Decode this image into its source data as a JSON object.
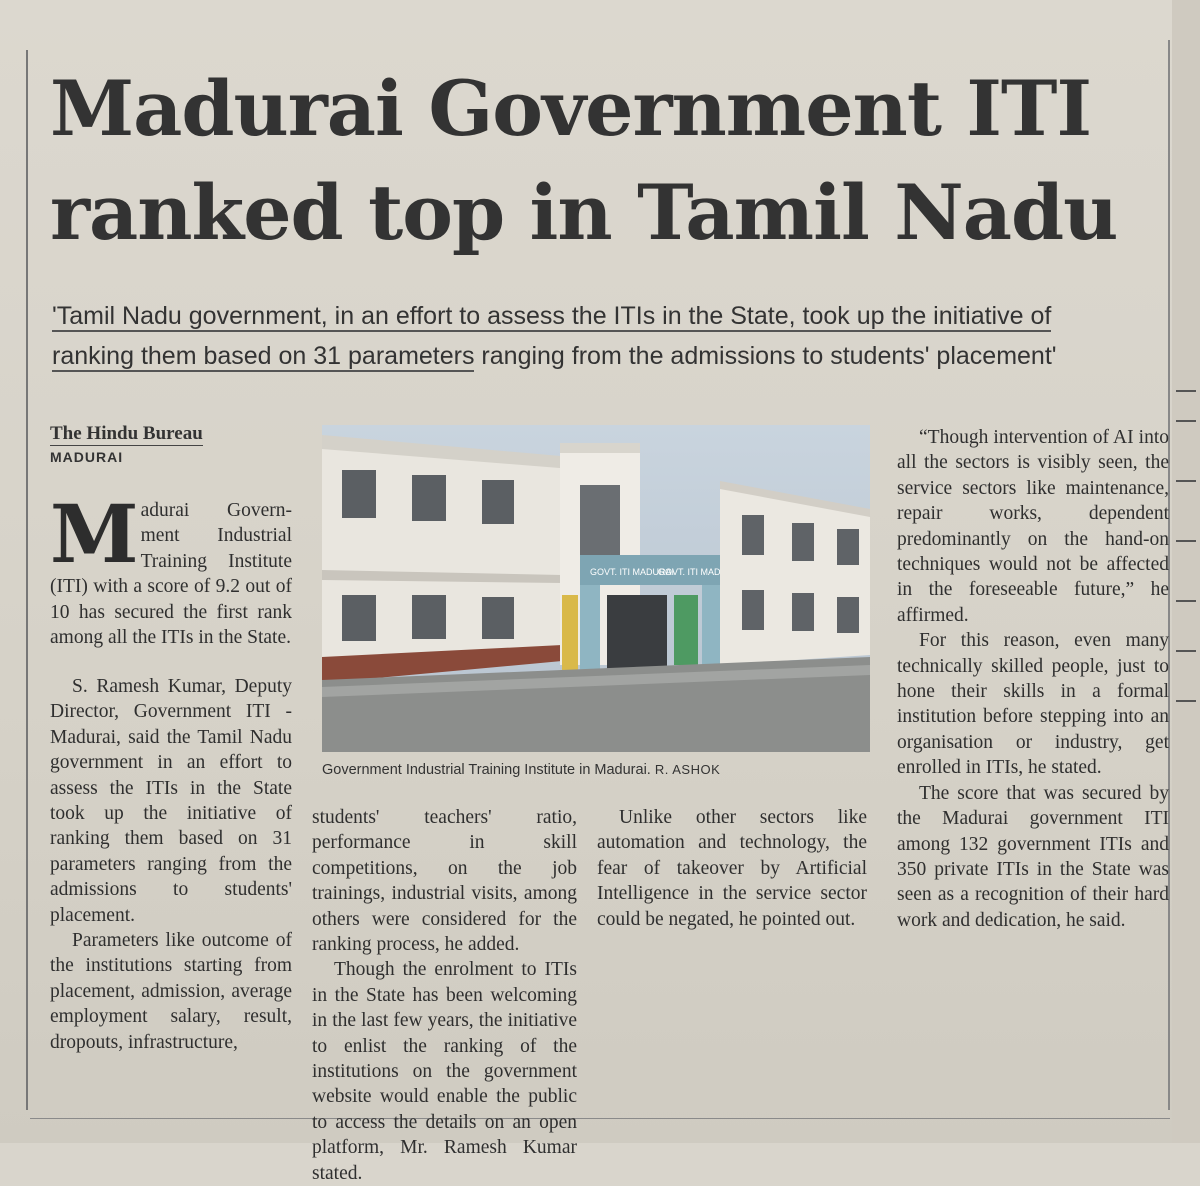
{
  "headline": {
    "line1": "Madurai Government ITI",
    "line2": "ranked top in Tamil Nadu"
  },
  "deck": {
    "line1_underlined": "'Tamil Nadu government, in an effort to assess the ITIs in the State, took up the initiative of",
    "line2_underlined": "ranking them based on 31 parameters",
    "line2_rest": " ranging from the admissions to students' placement'"
  },
  "byline": "The Hindu Bureau",
  "dateline": "MADURAI",
  "photo": {
    "caption": "Government Industrial Training Institute in Madurai.",
    "credit": "R. ASHOK",
    "sign1": "GOVT. ITI MADURAI",
    "sign2": "GOVT. ITI MADURAI"
  },
  "article": {
    "dropcap": "M",
    "p1": "adurai Govern- ment Industrial Training Institute (ITI) with a score of 9.2 out of 10 has secured the first rank among all the ITIs in the State.",
    "p2": "S. Ramesh Kumar, Deputy Director, Government ITI - Madurai, said the Tamil Nadu government in an effort to assess the ITIs in the State took up the initiative of ranking them based on 31 parameters ranging from the admissions to students' placement.",
    "p3": "Parameters like outcome of the institutions starting from placement, admission, average employment salary, result, dropouts, infrastructure,",
    "p4": "students' teachers' ratio, performance in skill competitions, on the job trainings, industrial visits, among others were considered for the ranking process, he added.",
    "p5": "Though the enrolment to ITIs in the State has been welcoming in the last few years, the initiative to enlist the ranking of the institutions on the government website would enable the public to access the details on an open platform, Mr. Ramesh Kumar stated.",
    "p6": "Unlike other sectors like automation and technology, the fear of takeover by Artificial Intelligence in the service sector could be negated, he pointed out.",
    "p7": "“Though intervention of AI into all the sectors is visibly seen, the service sectors like maintenance, repair works, dependent predominantly on the hand-on techniques would not be affected in the foreseeable future,” he affirmed.",
    "p8": "For this reason, even many technically skilled people, just to hone their skills in a formal institution before stepping into an organisation or industry, get enrolled in ITIs, he stated.",
    "p9": "The score that was secured by the Madurai government ITI among 132 government ITIs and 350 private ITIs in the State was seen as a recognition of their hard work and dedication, he said."
  }
}
